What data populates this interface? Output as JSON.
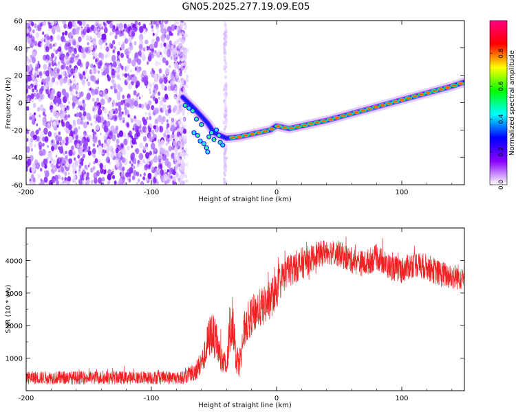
{
  "title": "GN05.2025.277.19.09.E05",
  "chart_data": [
    {
      "type": "heatmap",
      "xlabel": "Height of straight line (km)",
      "ylabel": "Frequency (Hz)",
      "xlim": [
        -200,
        150
      ],
      "ylim": [
        -60,
        60
      ],
      "xticks": [
        -200,
        -100,
        0,
        100
      ],
      "xtick_labels": [
        "-200",
        "-100",
        "0",
        "100"
      ],
      "yticks": [
        -60,
        -40,
        -20,
        0,
        20,
        40,
        60
      ],
      "ytick_labels": [
        "-60",
        "-40",
        "-20",
        "0",
        "20",
        "40",
        "60"
      ],
      "colorbar": {
        "label": "Normalized spectral amplitude",
        "range": [
          0,
          1
        ],
        "ticks": [
          0,
          0.2,
          0.4,
          0.6,
          0.8
        ],
        "tick_labels": [
          "0.0",
          "0.2",
          "0.4",
          "0.6",
          "0.8"
        ],
        "colors": [
          "#ffffff",
          "#8a00ff",
          "#0000ff",
          "#00ffff",
          "#00ff00",
          "#ffff00",
          "#ff0000",
          "#ff0080"
        ]
      },
      "noise_region_x": [
        -200,
        -75
      ],
      "noise_stripe_x": [
        -42,
        -40
      ],
      "ridge": {
        "x": [
          -75,
          -65,
          -55,
          -50,
          -45,
          -40,
          -30,
          -20,
          -10,
          -5,
          0,
          10,
          20,
          40,
          60,
          80,
          100,
          120,
          140,
          150
        ],
        "y": [
          4,
          -5,
          -15,
          -22,
          -24,
          -26,
          -25,
          -23,
          -21,
          -20,
          -17,
          -19,
          -17,
          -13,
          -8,
          -3,
          2,
          7,
          12,
          15
        ]
      }
    },
    {
      "type": "line",
      "xlabel": "Height of straight line (km)",
      "ylabel": "SNR (10 * v/v)",
      "xlim": [
        -200,
        150
      ],
      "ylim": [
        0,
        5000
      ],
      "xticks": [
        -200,
        -100,
        0,
        100
      ],
      "xtick_labels": [
        "-200",
        "-100",
        "0",
        "100"
      ],
      "yticks": [
        1000,
        2000,
        3000,
        4000
      ],
      "ytick_labels": [
        "1000",
        "2000",
        "3000",
        "4000"
      ],
      "color": "#ee2222",
      "envelope": {
        "x": [
          -200,
          -150,
          -100,
          -75,
          -65,
          -58,
          -55,
          -52,
          -48,
          -45,
          -40,
          -37,
          -35,
          -33,
          -30,
          -25,
          -20,
          -15,
          -10,
          -5,
          0,
          5,
          10,
          20,
          30,
          40,
          50,
          60,
          70,
          80,
          90,
          100,
          110,
          120,
          130,
          140,
          150
        ],
        "mean": [
          400,
          400,
          400,
          400,
          600,
          1000,
          1500,
          1800,
          1500,
          1000,
          700,
          1800,
          2400,
          1200,
          800,
          2000,
          2300,
          2500,
          2600,
          2800,
          3100,
          3500,
          3700,
          3900,
          4100,
          4300,
          4200,
          4000,
          3900,
          4100,
          3800,
          3700,
          3900,
          3800,
          3600,
          3500,
          3500
        ],
        "spread": [
          200,
          200,
          200,
          200,
          300,
          400,
          600,
          700,
          600,
          500,
          400,
          700,
          900,
          600,
          400,
          600,
          600,
          600,
          600,
          600,
          600,
          500,
          500,
          500,
          400,
          400,
          400,
          400,
          400,
          400,
          400,
          400,
          400,
          400,
          400,
          400,
          400
        ]
      }
    }
  ]
}
